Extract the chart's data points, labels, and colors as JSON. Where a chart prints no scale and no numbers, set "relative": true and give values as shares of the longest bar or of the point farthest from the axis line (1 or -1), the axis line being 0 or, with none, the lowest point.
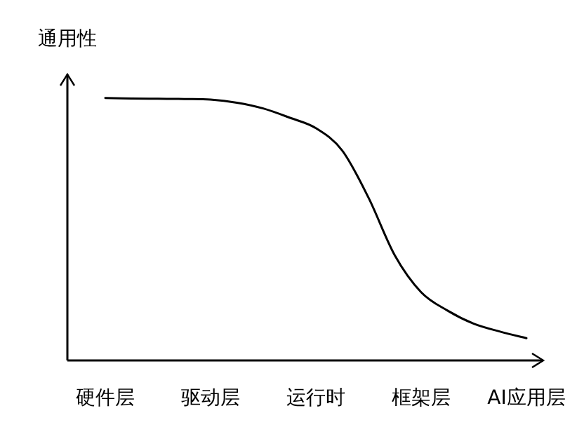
{
  "chart_data": {
    "type": "line",
    "relative": true,
    "ylabel": "通用性",
    "categories": [
      "硬件层",
      null,
      null,
      null,
      "驱动层",
      null,
      null,
      null,
      "运行时",
      null,
      null,
      null,
      "框架层",
      null,
      null,
      null,
      "AI应用层"
    ],
    "series": [
      {
        "color": "#000000",
        "values": [
          1,
          0.998,
          0.997,
          0.996,
          0.994,
          0.982,
          0.96,
          0.925,
          0.885,
          0.8,
          0.62,
          0.4,
          0.26,
          0.19,
          0.14,
          0.11,
          0.085
        ]
      }
    ]
  }
}
